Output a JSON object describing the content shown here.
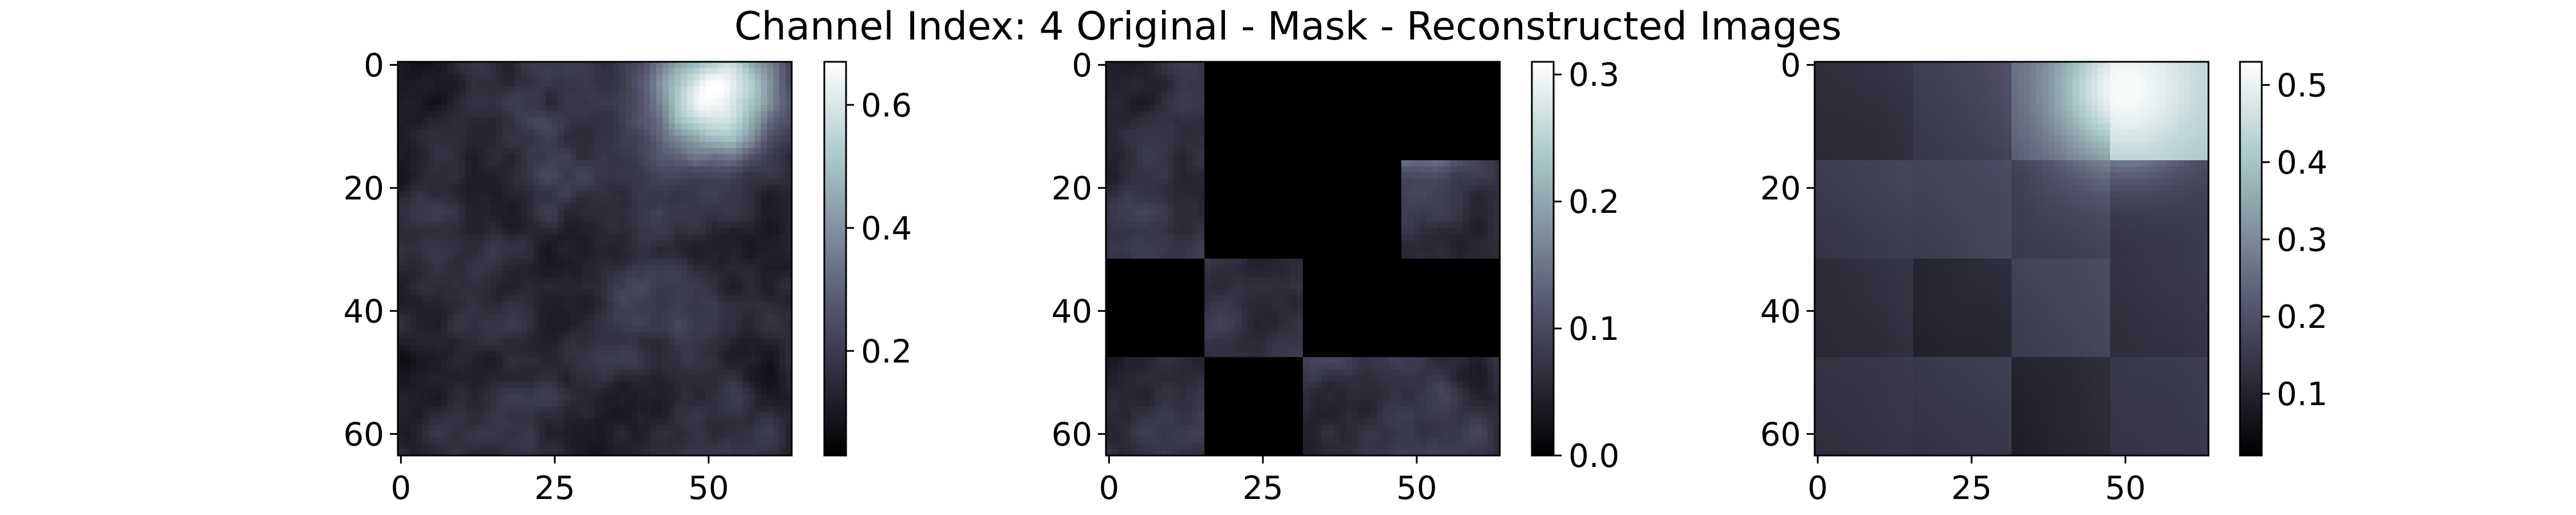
{
  "title": "Channel Index: 4 Original - Mask - Reconstructed Images",
  "chart_data": [
    {
      "type": "heatmap",
      "name": "Original",
      "colormap": "bone",
      "image_size": 64,
      "x_ticks": [
        0,
        25,
        50
      ],
      "y_ticks": [
        0,
        20,
        40,
        60
      ],
      "xlim": [
        0,
        63
      ],
      "ylim": [
        63,
        0
      ],
      "colorbar": {
        "min": 0.03,
        "max": 0.67,
        "ticks": [
          0.2,
          0.4,
          0.6
        ]
      },
      "description": "dark textured field with bright blob near top-right (x~50, y~5) and a faint brighter diagonal band"
    },
    {
      "type": "heatmap",
      "name": "Mask",
      "colormap": "bone",
      "image_size": 64,
      "x_ticks": [
        0,
        25,
        50
      ],
      "y_ticks": [
        0,
        20,
        40,
        60
      ],
      "xlim": [
        0,
        63
      ],
      "ylim": [
        63,
        0
      ],
      "colorbar": {
        "min": 0.0,
        "max": 0.31,
        "ticks": [
          0.0,
          0.1,
          0.2,
          0.3
        ]
      },
      "patch_grid": 4,
      "visible_patches": [
        [
          0,
          0
        ],
        [
          1,
          0
        ],
        [
          1,
          3
        ],
        [
          2,
          1
        ],
        [
          3,
          0
        ],
        [
          3,
          2
        ],
        [
          3,
          3
        ]
      ]
    },
    {
      "type": "heatmap",
      "name": "Reconstructed",
      "colormap": "bone",
      "image_size": 64,
      "x_ticks": [
        0,
        25,
        50
      ],
      "y_ticks": [
        0,
        20,
        40,
        60
      ],
      "xlim": [
        0,
        63
      ],
      "ylim": [
        63,
        0
      ],
      "colorbar": {
        "min": 0.02,
        "max": 0.53,
        "ticks": [
          0.1,
          0.2,
          0.3,
          0.4,
          0.5
        ]
      },
      "description": "smooth blocky reconstruction with bright region near top-right"
    }
  ]
}
